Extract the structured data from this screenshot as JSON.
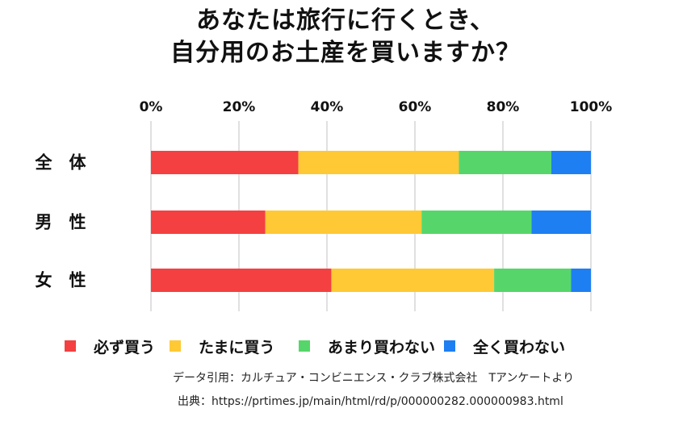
{
  "chart_data": {
    "type": "bar",
    "orientation": "horizontal",
    "stacked": true,
    "title": "あなたは旅行に行くとき、自分用のお土産を買いますか？",
    "title_lines": [
      "あなたは旅行に行くとき、",
      "自分用のお土産を買いますか？"
    ],
    "categories": [
      "全　体",
      "男　性",
      "女　性"
    ],
    "x_ticks": [
      "0%",
      "20%",
      "40%",
      "60%",
      "80%",
      "100%"
    ],
    "xlim": [
      0,
      100
    ],
    "grid": true,
    "legend_position": "bottom",
    "series": [
      {
        "name": "必ず買う",
        "color": "#f44040",
        "values": [
          33.5,
          26,
          41
        ]
      },
      {
        "name": "たまに買う",
        "color": "#ffc935",
        "values": [
          36.5,
          35.5,
          37
        ]
      },
      {
        "name": "あまり買わない",
        "color": "#56d66a",
        "values": [
          21,
          25,
          17.5
        ]
      },
      {
        "name": "全く買わない",
        "color": "#1e7ff2",
        "values": [
          9,
          13.5,
          4.5
        ]
      }
    ]
  },
  "footer": {
    "source_credit": "データ引用：カルチュア・コンビニエンス・クラブ株式会社　Tアンケートより",
    "source_url": "出典：https://prtimes.jp/main/html/rd/p/000000282.000000983.html"
  }
}
